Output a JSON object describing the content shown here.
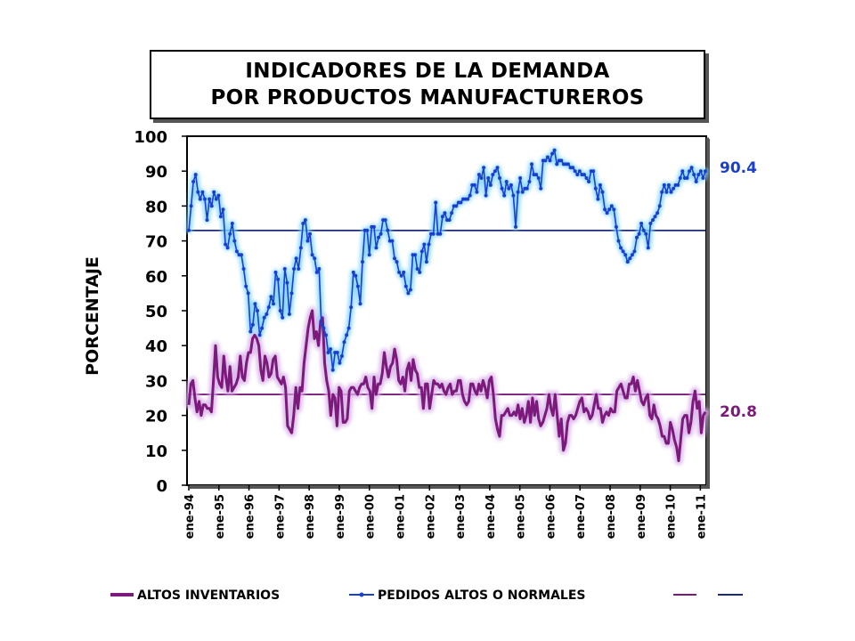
{
  "chart_data": {
    "type": "line",
    "title_line1": "INDICADORES DE LA DEMANDA",
    "title_line2": "POR PRODUCTOS MANUFACTUREROS",
    "ylabel": "PORCENTAJE",
    "ylim": [
      0,
      100
    ],
    "yticks": [
      "0",
      "10",
      "20",
      "30",
      "40",
      "50",
      "60",
      "70",
      "80",
      "90",
      "100"
    ],
    "xticks": [
      "ene-94",
      "ene-95",
      "ene-96",
      "ene-97",
      "ene-98",
      "ene-99",
      "ene-00",
      "ene-01",
      "ene-02",
      "ene-03",
      "ene-04",
      "ene-05",
      "ene-06",
      "ene-07",
      "ene-08",
      "ene-09",
      "ene-10",
      "ene-11"
    ],
    "x_start": "1994-01",
    "x_end": "2011-03",
    "grid": false,
    "legend_position": "bottom",
    "series": [
      {
        "name": "ALTOS INVENTARIOS",
        "color": "#7b1a7b",
        "glow": "#d8b0e8",
        "end_label": "20.8",
        "values": [
          23,
          29,
          30,
          25,
          21,
          24,
          20,
          23,
          23,
          22,
          22,
          21,
          30,
          40,
          31,
          29,
          28,
          37,
          31,
          27,
          34,
          27,
          28,
          29,
          31,
          37,
          31,
          30,
          35,
          38,
          38,
          42,
          43,
          42,
          40,
          33,
          30,
          37,
          35,
          31,
          32,
          36,
          37,
          31,
          30,
          29,
          31,
          28,
          17,
          16,
          15,
          20,
          28,
          22,
          28,
          27,
          35,
          40,
          45,
          48,
          50,
          42,
          44,
          40,
          47,
          48,
          35,
          30,
          27,
          20,
          26,
          25,
          17,
          28,
          27,
          18,
          18,
          19,
          27,
          28,
          28,
          27,
          26,
          28,
          29,
          29,
          31,
          28,
          27,
          22,
          31,
          26,
          29,
          29,
          32,
          38,
          34,
          31,
          34,
          35,
          39,
          36,
          30,
          29,
          31,
          27,
          33,
          35,
          30,
          36,
          33,
          32,
          28,
          28,
          22,
          29,
          29,
          22,
          26,
          30,
          29,
          29,
          28,
          29,
          27,
          26,
          28,
          29,
          26,
          27,
          27,
          30,
          30,
          26,
          24,
          23,
          24,
          29,
          29,
          27,
          26,
          29,
          27,
          30,
          28,
          25,
          30,
          31,
          26,
          19,
          16,
          14,
          20,
          20,
          21,
          22,
          20,
          20,
          21,
          20,
          23,
          19,
          22,
          18,
          20,
          24,
          18,
          25,
          20,
          24,
          19,
          17,
          18,
          20,
          22,
          26,
          22,
          20,
          26,
          20,
          14,
          19,
          10,
          12,
          18,
          20,
          20,
          19,
          20,
          22,
          24,
          25,
          21,
          22,
          21,
          19,
          20,
          23,
          26,
          22,
          22,
          18,
          20,
          21,
          20,
          22,
          21,
          21,
          27,
          28,
          29,
          27,
          25,
          25,
          29,
          29,
          31,
          27,
          30,
          27,
          24,
          23,
          25,
          26,
          20,
          19,
          23,
          20,
          19,
          17,
          14,
          14,
          12,
          12,
          18,
          16,
          13,
          11,
          7,
          13,
          19,
          20,
          20,
          15,
          18,
          24,
          27,
          22,
          24,
          15,
          20,
          21
        ]
      },
      {
        "name": "PEDIDOS ALTOS O NORMALES",
        "color": "#1a3fcc",
        "glow": "#7fd4ff",
        "end_label": "90.4",
        "values": [
          73,
          80,
          87,
          89,
          84,
          82,
          84,
          82,
          76,
          82,
          80,
          84,
          82,
          83,
          77,
          79,
          69,
          68,
          72,
          75,
          70,
          67,
          66,
          66,
          62,
          57,
          55,
          44,
          46,
          52,
          50,
          43,
          45,
          48,
          49,
          51,
          54,
          52,
          61,
          59,
          50,
          48,
          62,
          58,
          49,
          55,
          62,
          65,
          62,
          68,
          75,
          76,
          70,
          72,
          66,
          65,
          61,
          62,
          46,
          45,
          43,
          38,
          39,
          33,
          38,
          38,
          35,
          37,
          41,
          43,
          45,
          51,
          61,
          60,
          57,
          52,
          64,
          73,
          73,
          66,
          74,
          74,
          68,
          71,
          72,
          76,
          76,
          73,
          70,
          70,
          65,
          64,
          61,
          60,
          61,
          57,
          55,
          56,
          66,
          66,
          62,
          61,
          67,
          69,
          64,
          69,
          72,
          72,
          81,
          72,
          72,
          77,
          78,
          76,
          76,
          78,
          80,
          80,
          81,
          81,
          82,
          82,
          82,
          83,
          86,
          86,
          84,
          89,
          88,
          91,
          83,
          88,
          86,
          89,
          90,
          91,
          88,
          85,
          83,
          87,
          85,
          86,
          83,
          74,
          84,
          88,
          84,
          85,
          85,
          87,
          92,
          89,
          89,
          88,
          85,
          93,
          93,
          94,
          93,
          95,
          96,
          92,
          93,
          93,
          92,
          92,
          92,
          91,
          91,
          90,
          89,
          90,
          89,
          89,
          88,
          87,
          90,
          90,
          85,
          82,
          86,
          84,
          79,
          78,
          79,
          80,
          79,
          74,
          70,
          68,
          67,
          66,
          64,
          65,
          66,
          67,
          71,
          72,
          75,
          73,
          72,
          68,
          75,
          76,
          77,
          78,
          80,
          84,
          86,
          84,
          86,
          84,
          85,
          86,
          86,
          88,
          90,
          88,
          88,
          90,
          91,
          89,
          87,
          89,
          90,
          88,
          90
        ]
      }
    ],
    "reference_lines": [
      {
        "value": 26,
        "color": "#7b1a7b"
      },
      {
        "value": 73,
        "color": "#1a2a7a"
      }
    ]
  }
}
